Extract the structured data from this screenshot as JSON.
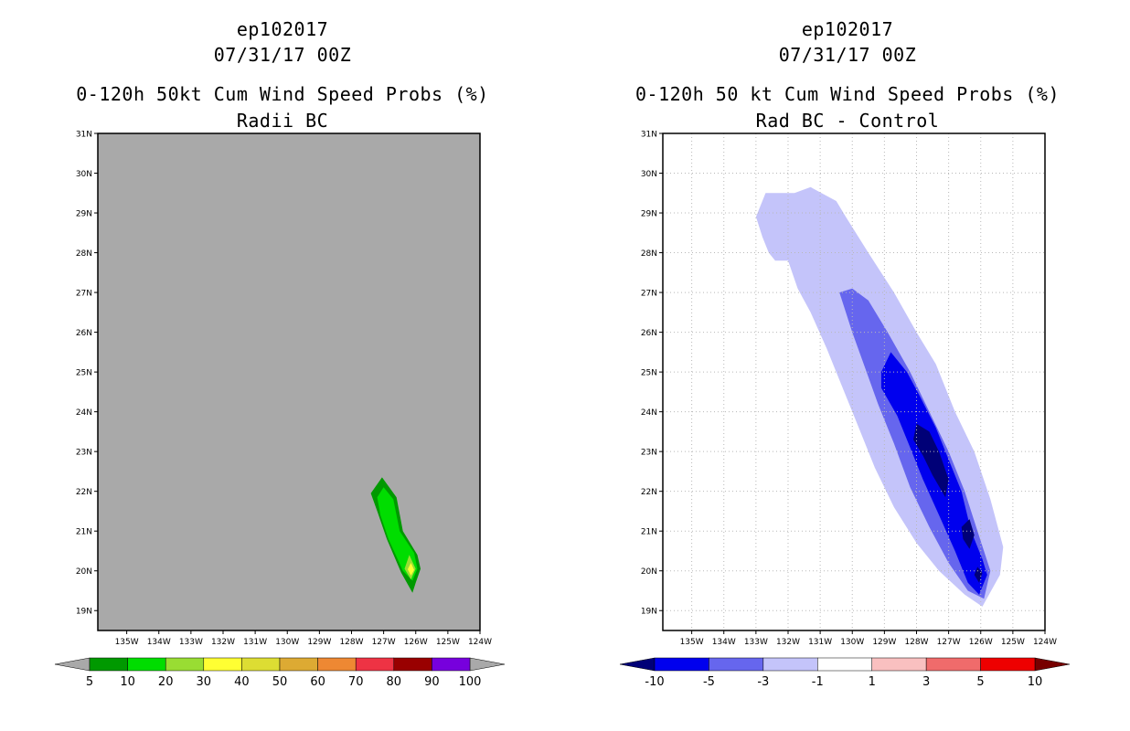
{
  "chart_data": [
    {
      "type": "filled-contour-map",
      "storm_id": "ep102017",
      "date": "07/31/17 00Z",
      "title": "0-120h 50kt Cum Wind Speed Probs (%)",
      "subtitle": "Radii BC",
      "background_color": "#a9a9a9",
      "grid": false,
      "lat_ticks": [
        "31N",
        "30N",
        "29N",
        "28N",
        "27N",
        "26N",
        "25N",
        "24N",
        "23N",
        "22N",
        "21N",
        "20N",
        "19N"
      ],
      "lon_ticks": [
        "135W",
        "134W",
        "133W",
        "132W",
        "131W",
        "130W",
        "129W",
        "128W",
        "127W",
        "126W",
        "125W",
        "124W"
      ],
      "lon_range": [
        -135.9,
        -124.0
      ],
      "lat_range": [
        18.5,
        31.0
      ],
      "colorbar": {
        "labels": [
          "5",
          "10",
          "20",
          "30",
          "40",
          "50",
          "60",
          "70",
          "80",
          "90",
          "100"
        ],
        "colors": [
          "#009900",
          "#00dd00",
          "#99dd33",
          "#ffff33",
          "#dddd33",
          "#ddaa33",
          "#ee8833",
          "#ee3344",
          "#990000",
          "#7700dd"
        ],
        "left_arrow_color": "#a9a9a9",
        "right_arrow_color": "#a9a9a9"
      },
      "contours": [
        {
          "level": "5-10%",
          "color": "#009900",
          "polygon": [
            [
              -127.4,
              21.95
            ],
            [
              -127.05,
              22.35
            ],
            [
              -126.6,
              21.85
            ],
            [
              -126.4,
              21.0
            ],
            [
              -125.95,
              20.4
            ],
            [
              -125.85,
              20.05
            ],
            [
              -126.0,
              19.7
            ],
            [
              -126.1,
              19.45
            ],
            [
              -126.45,
              19.95
            ],
            [
              -126.9,
              20.8
            ],
            [
              -127.2,
              21.5
            ]
          ]
        },
        {
          "level": "10-20%",
          "color": "#00dd00",
          "polygon": [
            [
              -127.2,
              21.85
            ],
            [
              -127.0,
              22.1
            ],
            [
              -126.7,
              21.8
            ],
            [
              -126.5,
              21.0
            ],
            [
              -126.05,
              20.45
            ],
            [
              -125.95,
              20.05
            ],
            [
              -126.1,
              19.75
            ],
            [
              -126.4,
              20.0
            ],
            [
              -126.85,
              20.8
            ],
            [
              -127.1,
              21.4
            ]
          ]
        },
        {
          "level": "20-30%",
          "color": "#99dd33",
          "polygon": [
            [
              -126.2,
              20.4
            ],
            [
              -126.0,
              20.05
            ],
            [
              -126.15,
              19.78
            ],
            [
              -126.35,
              20.05
            ]
          ]
        },
        {
          "level": "30-40%",
          "color": "#ffff33",
          "polygon": [
            [
              -126.15,
              20.2
            ],
            [
              -126.05,
              20.02
            ],
            [
              -126.15,
              19.88
            ],
            [
              -126.25,
              20.04
            ]
          ]
        }
      ]
    },
    {
      "type": "filled-contour-map",
      "storm_id": "ep102017",
      "date": "07/31/17 00Z",
      "title": "0-120h 50 kt Cum Wind Speed Probs (%)",
      "subtitle": "Rad BC - Control",
      "background_color": "#ffffff",
      "grid": true,
      "lat_ticks": [
        "31N",
        "30N",
        "29N",
        "28N",
        "27N",
        "26N",
        "25N",
        "24N",
        "23N",
        "22N",
        "21N",
        "20N",
        "19N"
      ],
      "lon_ticks": [
        "135W",
        "134W",
        "133W",
        "132W",
        "131W",
        "130W",
        "129W",
        "128W",
        "127W",
        "126W",
        "125W",
        "124W"
      ],
      "lon_range": [
        -135.9,
        -124.0
      ],
      "lat_range": [
        18.5,
        31.0
      ],
      "colorbar": {
        "labels": [
          "-10",
          "-5",
          "-3",
          "-1",
          "1",
          "3",
          "5",
          "10"
        ],
        "colors": [
          "#0000ee",
          "#6666ee",
          "#c4c4fa",
          "#ffffff",
          "#f9c0c0",
          "#f06b6b",
          "#ee0000"
        ],
        "left_arrow_color": "#000077",
        "right_arrow_color": "#770000"
      },
      "contours": [
        {
          "level": "-3 to -1",
          "color": "#c4c4fa",
          "polygon": [
            [
              -133.0,
              28.9
            ],
            [
              -132.7,
              29.5
            ],
            [
              -131.8,
              29.5
            ],
            [
              -131.3,
              29.65
            ],
            [
              -130.5,
              29.3
            ],
            [
              -130.2,
              28.9
            ],
            [
              -129.5,
              28.0
            ],
            [
              -128.7,
              27.0
            ],
            [
              -128.0,
              26.0
            ],
            [
              -127.4,
              25.2
            ],
            [
              -126.8,
              24.0
            ],
            [
              -126.2,
              23.0
            ],
            [
              -125.7,
              21.8
            ],
            [
              -125.3,
              20.6
            ],
            [
              -125.4,
              19.9
            ],
            [
              -125.95,
              19.1
            ],
            [
              -126.5,
              19.4
            ],
            [
              -127.3,
              20.0
            ],
            [
              -128.0,
              20.7
            ],
            [
              -128.7,
              21.6
            ],
            [
              -129.3,
              22.6
            ],
            [
              -129.8,
              23.6
            ],
            [
              -130.3,
              24.6
            ],
            [
              -130.8,
              25.6
            ],
            [
              -131.3,
              26.5
            ],
            [
              -131.7,
              27.1
            ],
            [
              -132.0,
              27.8
            ],
            [
              -132.4,
              27.8
            ],
            [
              -132.6,
              28.0
            ],
            [
              -132.8,
              28.4
            ]
          ]
        },
        {
          "level": "-5 to -3",
          "color": "#6666ee",
          "polygon": [
            [
              -130.4,
              27.0
            ],
            [
              -130.0,
              27.1
            ],
            [
              -129.5,
              26.8
            ],
            [
              -128.9,
              26.0
            ],
            [
              -128.2,
              25.0
            ],
            [
              -127.6,
              24.0
            ],
            [
              -127.0,
              23.0
            ],
            [
              -126.5,
              22.0
            ],
            [
              -126.1,
              21.0
            ],
            [
              -125.7,
              20.0
            ],
            [
              -125.9,
              19.3
            ],
            [
              -126.4,
              19.5
            ],
            [
              -127.0,
              20.2
            ],
            [
              -127.6,
              21.1
            ],
            [
              -128.2,
              22.1
            ],
            [
              -128.7,
              23.2
            ],
            [
              -129.2,
              24.2
            ],
            [
              -129.6,
              25.1
            ],
            [
              -130.0,
              26.0
            ]
          ]
        },
        {
          "level": "-10 to -5",
          "color": "#0000ee",
          "polygon": [
            [
              -129.1,
              25.0
            ],
            [
              -128.8,
              25.5
            ],
            [
              -128.3,
              25.0
            ],
            [
              -127.9,
              24.4
            ],
            [
              -127.4,
              23.6
            ],
            [
              -127.0,
              22.8
            ],
            [
              -126.6,
              22.0
            ],
            [
              -126.3,
              21.0
            ],
            [
              -125.95,
              20.3
            ],
            [
              -125.8,
              19.9
            ],
            [
              -126.05,
              19.4
            ],
            [
              -126.4,
              19.7
            ],
            [
              -126.8,
              20.5
            ],
            [
              -127.3,
              21.4
            ],
            [
              -127.8,
              22.3
            ],
            [
              -128.2,
              23.1
            ],
            [
              -128.6,
              23.9
            ],
            [
              -129.1,
              24.6
            ]
          ]
        },
        {
          "level": "below -10",
          "color": "#000077",
          "polygon": [
            [
              -128.0,
              23.7
            ],
            [
              -127.6,
              23.5
            ],
            [
              -127.3,
              23.0
            ],
            [
              -127.0,
              22.3
            ],
            [
              -127.1,
              21.85
            ],
            [
              -127.5,
              22.4
            ],
            [
              -127.8,
              22.9
            ],
            [
              -128.1,
              23.3
            ]
          ]
        },
        {
          "level": "below -10",
          "color": "#000077",
          "polygon": [
            [
              -126.6,
              21.1
            ],
            [
              -126.35,
              21.3
            ],
            [
              -126.2,
              20.9
            ],
            [
              -126.35,
              20.55
            ],
            [
              -126.55,
              20.8
            ]
          ]
        },
        {
          "level": "below -10",
          "color": "#000077",
          "polygon": [
            [
              -126.1,
              20.1
            ],
            [
              -125.95,
              19.95
            ],
            [
              -126.05,
              19.7
            ],
            [
              -126.2,
              19.9
            ]
          ]
        }
      ]
    }
  ]
}
